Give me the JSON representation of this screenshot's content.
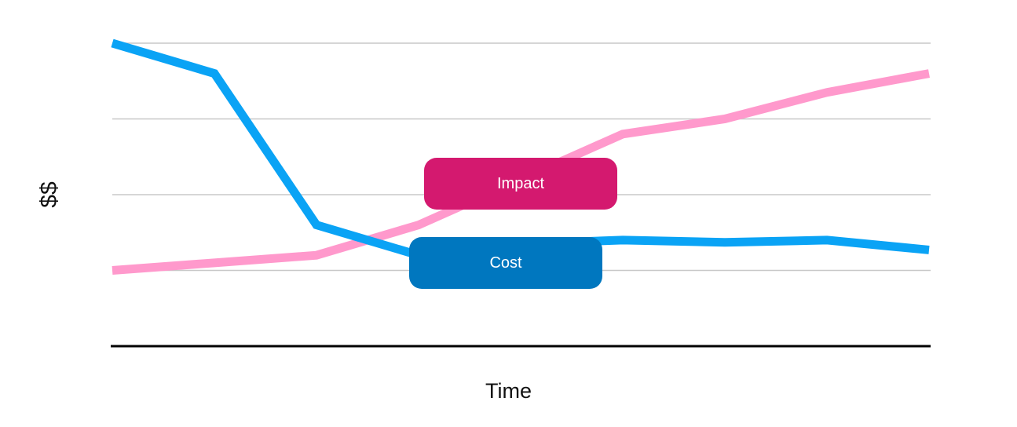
{
  "chart_data": {
    "type": "line",
    "x": [
      0,
      1,
      2,
      3,
      4,
      5,
      6,
      7,
      8
    ],
    "series": [
      {
        "name": "Cost",
        "color": "#0aa3f5",
        "values": [
          4.0,
          3.6,
          1.6,
          1.2,
          1.35,
          1.4,
          1.37,
          1.4,
          1.27
        ]
      },
      {
        "name": "Impact",
        "color": "#ff99cc",
        "values": [
          1.0,
          1.1,
          1.2,
          1.6,
          2.2,
          2.8,
          3.0,
          3.35,
          3.6
        ]
      }
    ],
    "xlabel": "Time",
    "ylabel": "$$",
    "ylim": [
      0,
      4
    ],
    "grid": true
  },
  "labels": {
    "impact": {
      "text": "Impact",
      "color": "#d4196f"
    },
    "cost": {
      "text": "Cost",
      "color": "#0077bf"
    }
  }
}
